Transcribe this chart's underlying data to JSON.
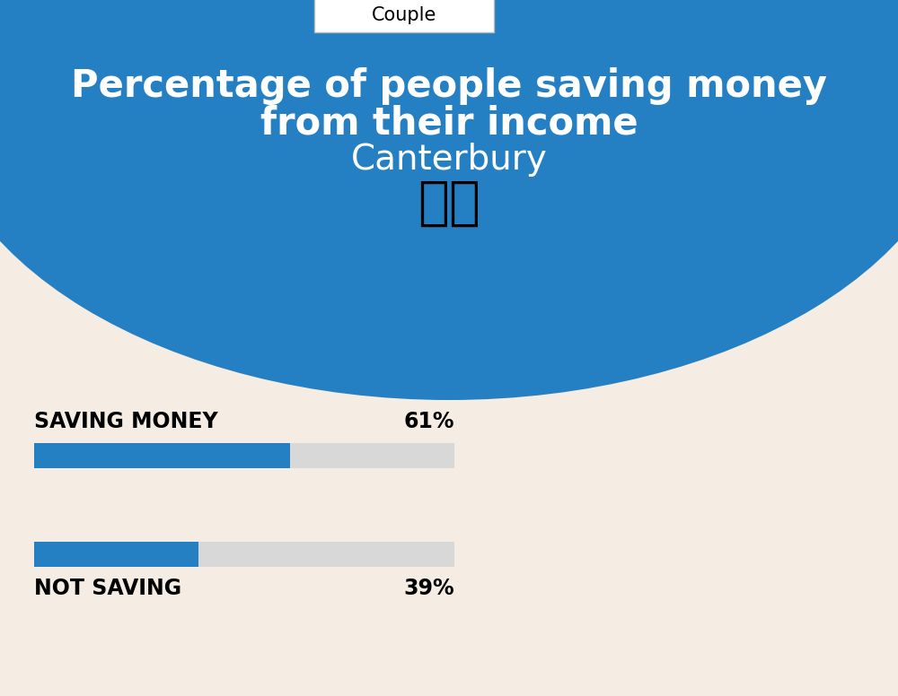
{
  "title_line1": "Percentage of people saving money",
  "title_line2": "from their income",
  "subtitle": "Canterbury",
  "tab_label": "Couple",
  "bg_color": "#F5EDE3",
  "blue_color": "#2580C3",
  "bar_fill_color": "#2580C3",
  "bar_bg_color": "#D8D8D8",
  "saving_label": "SAVING MONEY",
  "saving_value": 61,
  "saving_pct_text": "61%",
  "not_saving_label": "NOT SAVING",
  "not_saving_value": 39,
  "not_saving_pct_text": "39%",
  "label_fontsize": 17,
  "pct_fontsize": 17,
  "title_fontsize": 30,
  "subtitle_fontsize": 28,
  "tab_fontsize": 15,
  "flag_emoji": "🇬🇧"
}
